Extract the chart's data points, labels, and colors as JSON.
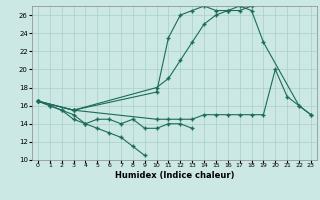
{
  "xlabel": "Humidex (Indice chaleur)",
  "xlim": [
    -0.5,
    23.5
  ],
  "ylim": [
    10,
    27
  ],
  "yticks": [
    10,
    12,
    14,
    16,
    18,
    20,
    22,
    24,
    26
  ],
  "xticks": [
    0,
    1,
    2,
    3,
    4,
    5,
    6,
    7,
    8,
    9,
    10,
    11,
    12,
    13,
    14,
    15,
    16,
    17,
    18,
    19,
    20,
    21,
    22,
    23
  ],
  "bg_color": "#cce8e4",
  "line_color": "#1a6b5a",
  "grid_color": "#aacfca",
  "series1_x": [
    0,
    1,
    2,
    3,
    4,
    5,
    6,
    7,
    8,
    9
  ],
  "series1_y": [
    16.5,
    16.0,
    15.5,
    15.0,
    14.0,
    13.5,
    13.0,
    12.5,
    11.5,
    10.5
  ],
  "series2_x": [
    0,
    1,
    2,
    3,
    4,
    5,
    6,
    7,
    8,
    9,
    10,
    11,
    12,
    13
  ],
  "series2_y": [
    16.5,
    16.0,
    15.5,
    14.5,
    14.0,
    14.5,
    14.5,
    14.0,
    14.5,
    13.5,
    13.5,
    14.0,
    14.0,
    13.5
  ],
  "series3_x": [
    0,
    3,
    10,
    11,
    12,
    13,
    14,
    15,
    16,
    17,
    18,
    19,
    22,
    23
  ],
  "series3_y": [
    16.5,
    15.5,
    18.0,
    19.0,
    21.0,
    23.0,
    25.0,
    26.0,
    26.5,
    27.0,
    26.5,
    23.0,
    16.0,
    15.0
  ],
  "series4_x": [
    0,
    3,
    10,
    11,
    12,
    13,
    14,
    15,
    16,
    17,
    18
  ],
  "series4_y": [
    16.5,
    15.5,
    17.5,
    23.5,
    26.0,
    26.5,
    27.0,
    26.5,
    26.5,
    26.5,
    27.0
  ],
  "series5_x": [
    0,
    3,
    10,
    11,
    12,
    13,
    14,
    15,
    16,
    17,
    18,
    19,
    20,
    21,
    22,
    23
  ],
  "series5_y": [
    16.5,
    15.5,
    14.5,
    14.5,
    14.5,
    14.5,
    15.0,
    15.0,
    15.0,
    15.0,
    15.0,
    15.0,
    20.0,
    17.0,
    16.0,
    15.0
  ]
}
